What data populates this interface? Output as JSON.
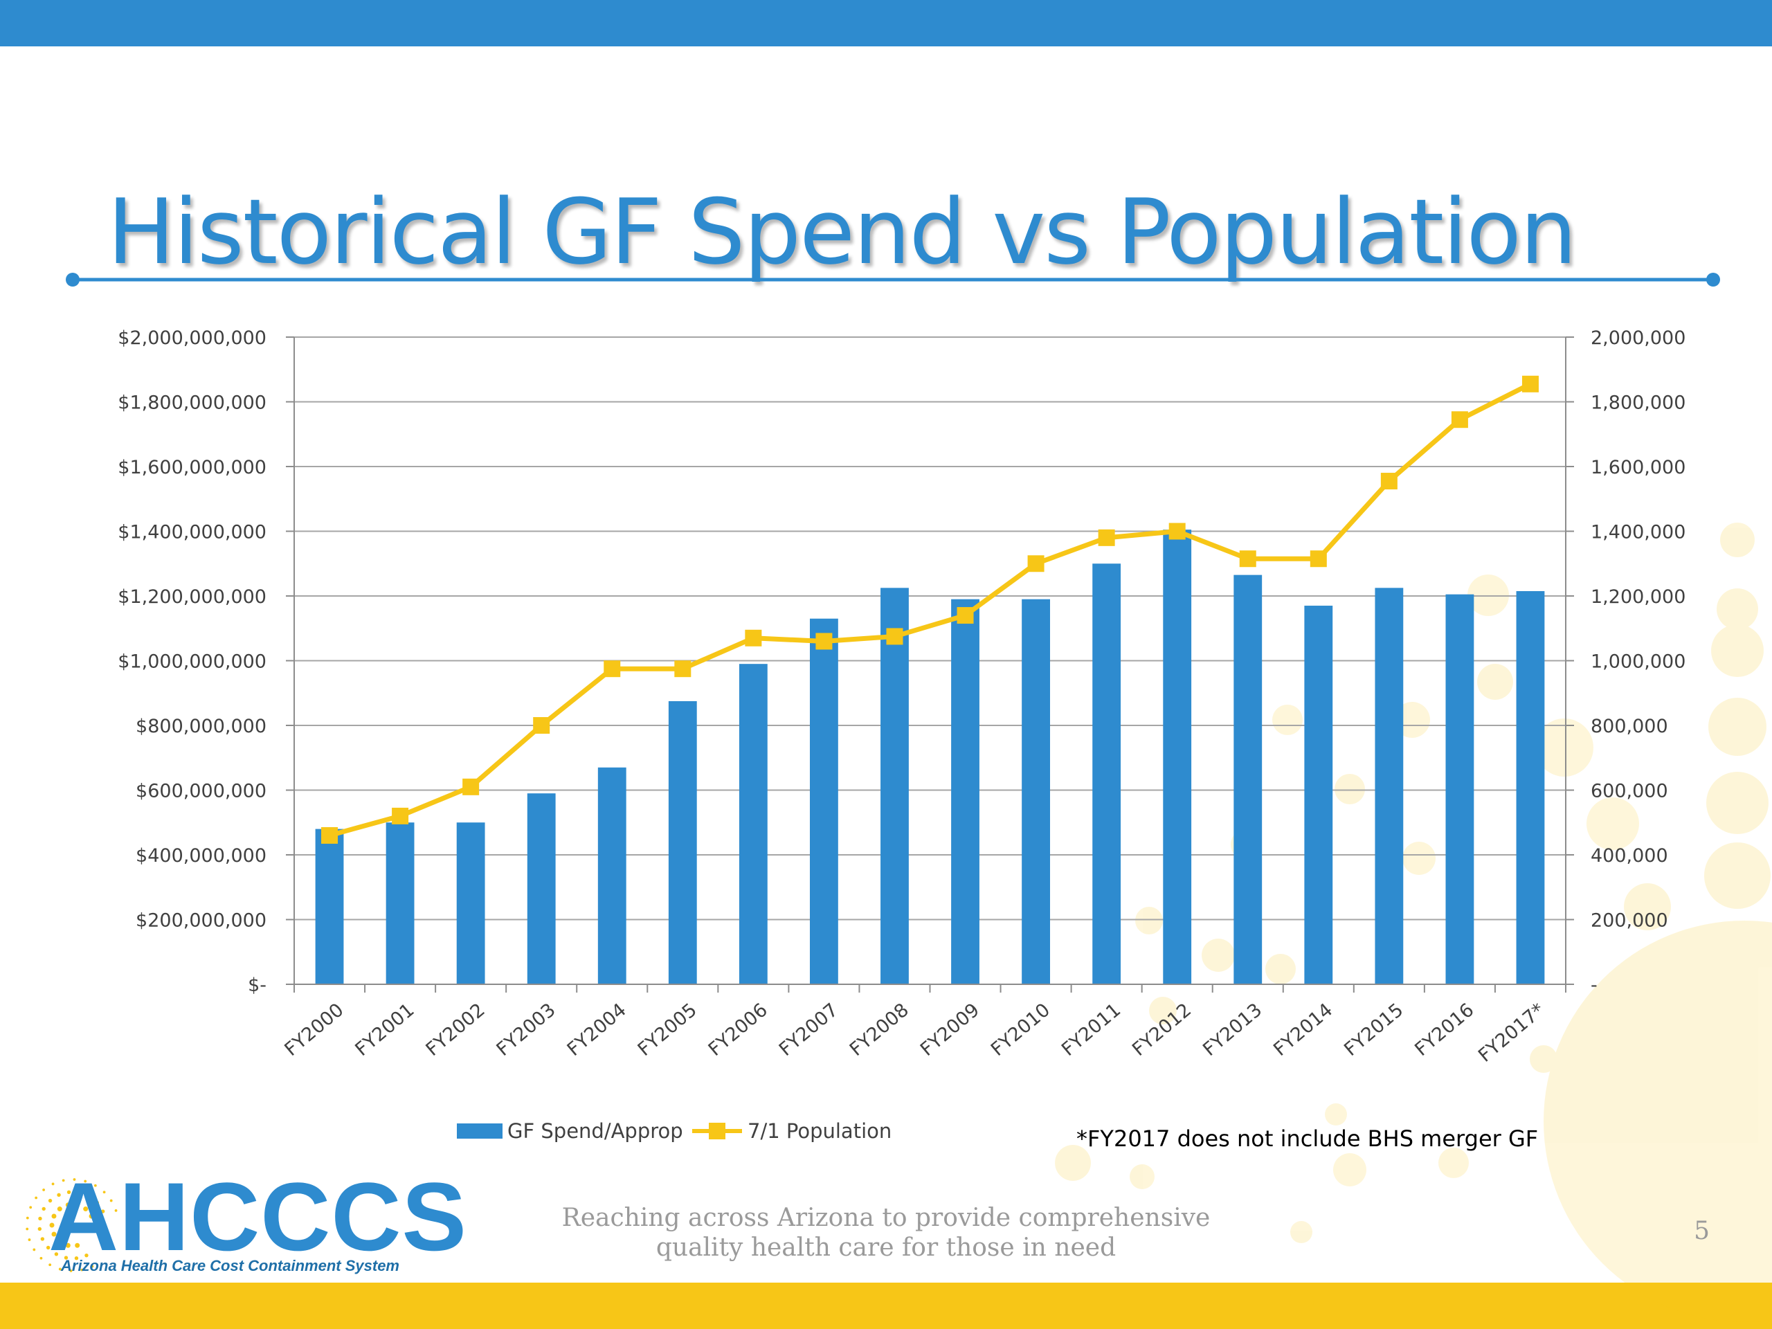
{
  "slide": {
    "title": "Historical GF Spend vs Population",
    "tagline_line1": "Reaching across Arizona to provide comprehensive",
    "tagline_line2": "quality health care for those in need",
    "page_number": "5",
    "logo_text": "AHCCCS",
    "logo_subtitle": "Arizona Health Care Cost Containment System",
    "colors": {
      "brand_blue": "#2e8bcf",
      "brand_yellow": "#f7c617"
    }
  },
  "chart_data": {
    "type": "bar",
    "categories": [
      "FY2000",
      "FY2001",
      "FY2002",
      "FY2003",
      "FY2004",
      "FY2005",
      "FY2006",
      "FY2007",
      "FY2008",
      "FY2009",
      "FY2010",
      "FY2011",
      "FY2012",
      "FY2013",
      "FY2014",
      "FY2015",
      "FY2016",
      "FY2017*"
    ],
    "series": [
      {
        "name": "GF Spend/Approp",
        "type": "bar",
        "axis": "left",
        "color": "#2e8bcf",
        "values": [
          480000000,
          500000000,
          500000000,
          590000000,
          670000000,
          875000000,
          990000000,
          1130000000,
          1225000000,
          1190000000,
          1190000000,
          1300000000,
          1405000000,
          1265000000,
          1170000000,
          1225000000,
          1205000000,
          1215000000
        ]
      },
      {
        "name": "7/1 Population",
        "type": "line",
        "axis": "right",
        "color": "#f7c617",
        "values": [
          460000,
          520000,
          610000,
          800000,
          975000,
          975000,
          1070000,
          1060000,
          1075000,
          1140000,
          1300000,
          1380000,
          1400000,
          1315000,
          1315000,
          1555000,
          1745000,
          1855000
        ]
      }
    ],
    "y_left": {
      "lim": [
        0,
        2000000000
      ],
      "ticks": [
        0,
        200000000,
        400000000,
        600000000,
        800000000,
        1000000000,
        1200000000,
        1400000000,
        1600000000,
        1800000000,
        2000000000
      ],
      "tick_labels": [
        "$-",
        "$200,000,000",
        "$400,000,000",
        "$600,000,000",
        "$800,000,000",
        "$1,000,000,000",
        "$1,200,000,000",
        "$1,400,000,000",
        "$1,600,000,000",
        "$1,800,000,000",
        "$2,000,000,000"
      ]
    },
    "y_right": {
      "lim": [
        0,
        2000000
      ],
      "ticks": [
        0,
        200000,
        400000,
        600000,
        800000,
        1000000,
        1200000,
        1400000,
        1600000,
        1800000,
        2000000
      ],
      "tick_labels": [
        "-",
        "200,000",
        "400,000",
        "600,000",
        "800,000",
        "1,000,000",
        "1,200,000",
        "1,400,000",
        "1,600,000",
        "1,800,000",
        "2,000,000"
      ]
    },
    "grid": true,
    "legend": "bottom",
    "annotation": "*FY2017 does not include BHS merger GF"
  }
}
